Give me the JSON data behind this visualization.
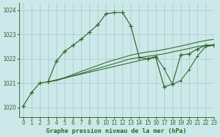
{
  "title": "Graphe pression niveau de la mer (hPa)",
  "bg_color": "#cce8e8",
  "grid_color": "#aacccc",
  "line_color": "#2d6628",
  "xlim": [
    -0.5,
    23
  ],
  "ylim": [
    1019.6,
    1024.3
  ],
  "yticks": [
    1020,
    1021,
    1022,
    1023,
    1024
  ],
  "xticks": [
    0,
    1,
    2,
    3,
    4,
    5,
    6,
    7,
    8,
    9,
    10,
    11,
    12,
    13,
    14,
    15,
    16,
    17,
    18,
    19,
    20,
    21,
    22,
    23
  ],
  "series_main_x": [
    0,
    1,
    2,
    3,
    4,
    5,
    6,
    7,
    8,
    9,
    10,
    11,
    12,
    13,
    14,
    15,
    16,
    17,
    18,
    19,
    20,
    21,
    22,
    23
  ],
  "series_main_y": [
    1020.05,
    1020.6,
    1021.0,
    1021.05,
    1021.9,
    1022.3,
    1022.55,
    1022.8,
    1023.1,
    1023.4,
    1023.85,
    1023.9,
    1023.9,
    1023.35,
    1022.05,
    1022.0,
    1022.05,
    1020.85,
    1020.95,
    1022.15,
    1022.2,
    1022.4,
    1022.55,
    1022.55
  ],
  "series_b_x": [
    3,
    4,
    5,
    6,
    7,
    8,
    9,
    10,
    11,
    12,
    13,
    14,
    15,
    16,
    17,
    18,
    19,
    20,
    21,
    22,
    23
  ],
  "series_b_y": [
    1021.05,
    1021.1,
    1021.2,
    1021.3,
    1021.4,
    1021.5,
    1021.6,
    1021.7,
    1021.8,
    1021.9,
    1022.0,
    1022.05,
    1022.1,
    1022.15,
    1022.2,
    1022.28,
    1022.35,
    1022.42,
    1022.5,
    1022.55,
    1022.58
  ],
  "series_c_x": [
    3,
    4,
    5,
    6,
    7,
    8,
    9,
    10,
    11,
    12,
    13,
    14,
    15,
    16,
    17,
    18,
    19,
    20,
    21,
    22,
    23
  ],
  "series_c_y": [
    1021.05,
    1021.12,
    1021.22,
    1021.35,
    1021.48,
    1021.6,
    1021.72,
    1021.85,
    1021.95,
    1022.05,
    1022.15,
    1022.22,
    1022.28,
    1022.32,
    1022.38,
    1022.45,
    1022.52,
    1022.6,
    1022.68,
    1022.75,
    1022.8
  ],
  "series_d_x": [
    3,
    15,
    16,
    17,
    18,
    19,
    20,
    21,
    22,
    23
  ],
  "series_d_y": [
    1021.05,
    1022.0,
    1022.1,
    1021.6,
    1020.95,
    1021.1,
    1021.55,
    1022.1,
    1022.5,
    1022.55
  ]
}
